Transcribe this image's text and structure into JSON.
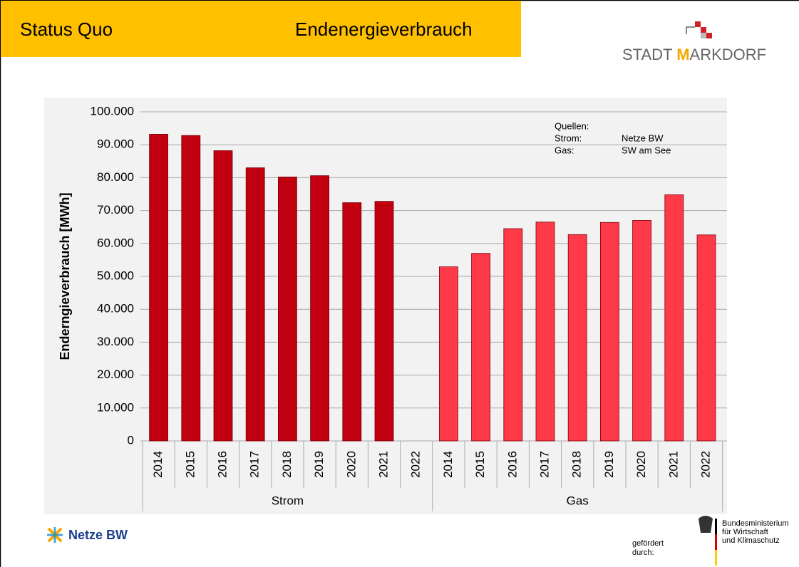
{
  "header": {
    "section": "Status Quo",
    "title": "Endenergieverbrauch",
    "logo": [
      "STADT",
      "M",
      "ARKDORF"
    ]
  },
  "chart_data": {
    "type": "bar",
    "ylabel": "Enderngieverbrauch [MWh]",
    "categories": [
      "2014",
      "2015",
      "2016",
      "2017",
      "2018",
      "2019",
      "2020",
      "2021",
      "2022"
    ],
    "series": [
      {
        "name": "Strom",
        "color": "#c00010",
        "values": [
          93200,
          92800,
          88200,
          83000,
          80200,
          80600,
          72400,
          72800,
          null
        ]
      },
      {
        "name": "Gas",
        "color": "#ff3a48",
        "values": [
          52900,
          57000,
          64500,
          66500,
          62700,
          66400,
          67000,
          74800,
          62600
        ]
      }
    ],
    "ylim": [
      0,
      100000
    ],
    "yticks": [
      0,
      {
        "value": 10000,
        "label": "10.000"
      },
      {
        "value": 20000,
        "label": "20.000"
      },
      {
        "value": 30000,
        "label": "30.000"
      },
      {
        "value": 40000,
        "label": "40.000"
      },
      {
        "value": 50000,
        "label": "50.000"
      },
      {
        "value": 60000,
        "label": "60.000"
      },
      {
        "value": 70000,
        "label": "70.000"
      },
      {
        "value": 80000,
        "label": "80.000"
      },
      {
        "value": 90000,
        "label": "90.000"
      },
      {
        "value": 100000,
        "label": "100.000"
      }
    ],
    "grid": true,
    "annotation": {
      "heading": "Quellen:",
      "rows": [
        [
          "Strom:",
          "Netze BW"
        ],
        [
          "Gas:",
          "SW am See"
        ]
      ]
    }
  },
  "footer": {
    "partner": "Netze BW",
    "funded": [
      "gefördert",
      "durch:"
    ],
    "ministry": [
      "Bundesministerium",
      "für Wirtschaft",
      "und Klimaschutz"
    ]
  }
}
